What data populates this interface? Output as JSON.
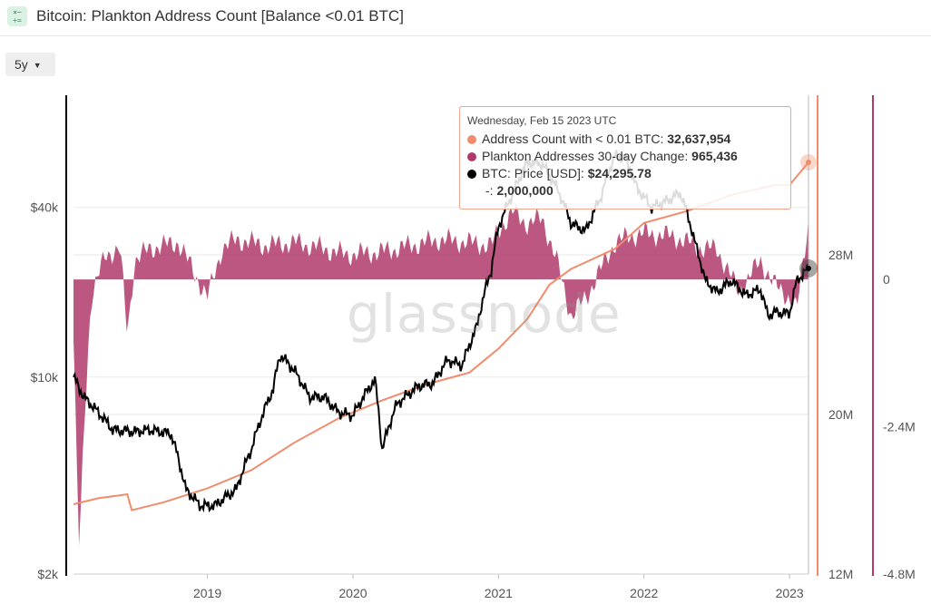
{
  "header": {
    "title": "Bitcoin: Plankton Address Count [Balance <0.01 BTC]",
    "icon": "calculator-icon"
  },
  "controls": {
    "range_label": "5y"
  },
  "watermark": "glassnode",
  "tooltip": {
    "date": "Wednesday, Feb 15 2023 UTC",
    "rows": [
      {
        "label": "Address Count with < 0.01 BTC: ",
        "value": "32,637,954",
        "color": "#f08c6c"
      },
      {
        "label": "Plankton Addresses 30-day Change: ",
        "value": "965,436",
        "color": "#b03a6b"
      },
      {
        "label": "BTC: Price [USD]: ",
        "value": "$24,295.78",
        "color": "#000000"
      },
      {
        "label": "-: ",
        "value": "2,000,000",
        "color": ""
      }
    ]
  },
  "chart_data": {
    "type": "line",
    "title": "Bitcoin: Plankton Address Count [Balance <0.01 BTC]",
    "x_ticks": [
      "2019",
      "2020",
      "2021",
      "2022",
      "2023"
    ],
    "x_range": [
      2018.08,
      2023.13
    ],
    "axes": {
      "price_log": {
        "ticks": [
          "$40k",
          "$10k",
          "$2k"
        ],
        "tick_values": [
          40000,
          10000,
          2000
        ],
        "range": [
          2000,
          100000
        ],
        "scale": "log"
      },
      "address_count": {
        "ticks": [
          "28M",
          "20M",
          "12M"
        ],
        "tick_values": [
          28000000,
          20000000,
          12000000
        ],
        "range": [
          12000000,
          36000000
        ]
      },
      "change_30d": {
        "ticks": [
          "0",
          "-2.4M",
          "-4.8M"
        ],
        "tick_values": [
          0,
          -2400000,
          -4800000
        ],
        "range": [
          -4800000,
          3000000
        ]
      }
    },
    "series": [
      {
        "name": "BTC: Price [USD]",
        "color": "#000000",
        "axis": "price_log",
        "x": [
          2018.08,
          2018.15,
          2018.25,
          2018.35,
          2018.5,
          2018.6,
          2018.75,
          2018.85,
          2018.95,
          2019.05,
          2019.2,
          2019.3,
          2019.45,
          2019.5,
          2019.6,
          2019.7,
          2019.8,
          2019.9,
          2020.0,
          2020.15,
          2020.2,
          2020.3,
          2020.45,
          2020.55,
          2020.65,
          2020.75,
          2020.85,
          2020.95,
          2021.0,
          2021.1,
          2021.2,
          2021.3,
          2021.4,
          2021.5,
          2021.6,
          2021.7,
          2021.8,
          2021.87,
          2021.95,
          2022.05,
          2022.15,
          2022.25,
          2022.35,
          2022.42,
          2022.5,
          2022.6,
          2022.7,
          2022.8,
          2022.85,
          2022.9,
          2023.0,
          2023.05,
          2023.13
        ],
        "values": [
          10000,
          8500,
          7500,
          6500,
          6400,
          6500,
          6300,
          4000,
          3500,
          3500,
          4000,
          5500,
          9000,
          12000,
          10500,
          8500,
          8500,
          7500,
          7300,
          9800,
          5500,
          8000,
          9300,
          9500,
          11500,
          11000,
          15000,
          24000,
          34000,
          45000,
          58000,
          57000,
          47000,
          35000,
          33000,
          43000,
          61000,
          60000,
          47000,
          40000,
          42000,
          45000,
          30000,
          22000,
          20000,
          22000,
          19500,
          20500,
          16500,
          17000,
          16800,
          22000,
          24300
        ]
      },
      {
        "name": "Address Count with < 0.01 BTC",
        "color": "#f08c6c",
        "axis": "address_count",
        "x": [
          2018.08,
          2018.25,
          2018.45,
          2018.48,
          2018.7,
          2019.0,
          2019.3,
          2019.6,
          2019.9,
          2020.2,
          2020.5,
          2020.8,
          2021.0,
          2021.2,
          2021.35,
          2021.5,
          2021.8,
          2022.0,
          2022.3,
          2022.6,
          2022.9,
          2023.0,
          2023.13
        ],
        "values": [
          15500000,
          15800000,
          16000000,
          15200000,
          15600000,
          16300000,
          17200000,
          18600000,
          19800000,
          20700000,
          21500000,
          22100000,
          23300000,
          24800000,
          26500000,
          27300000,
          28300000,
          29600000,
          30200000,
          31000000,
          31500000,
          31500000,
          32637954
        ]
      },
      {
        "name": "Plankton Addresses 30-day Change",
        "color": "#b03a6b",
        "axis": "change_30d",
        "x": [
          2018.08,
          2018.12,
          2018.15,
          2018.2,
          2018.3,
          2018.4,
          2018.45,
          2018.5,
          2018.6,
          2018.8,
          2019.0,
          2019.1,
          2019.2,
          2019.4,
          2019.6,
          2019.8,
          2019.95,
          2020.2,
          2020.4,
          2020.6,
          2020.8,
          2020.95,
          2021.0,
          2021.1,
          2021.2,
          2021.3,
          2021.4,
          2021.5,
          2021.6,
          2021.8,
          2021.9,
          2022.0,
          2022.2,
          2022.3,
          2022.4,
          2022.5,
          2022.65,
          2022.8,
          2022.9,
          2023.0,
          2023.05,
          2023.13
        ],
        "values": [
          -1000000,
          -4500000,
          -2500000,
          -300000,
          400000,
          500000,
          -900000,
          300000,
          500000,
          600000,
          -300000,
          500000,
          650000,
          550000,
          600000,
          500000,
          400000,
          450000,
          550000,
          650000,
          600000,
          550000,
          800000,
          1100000,
          900000,
          1000000,
          300000,
          -600000,
          -300000,
          600000,
          700000,
          750000,
          700000,
          600000,
          500000,
          500000,
          -200000,
          300000,
          -100000,
          -300000,
          -500000,
          965436
        ]
      }
    ],
    "reference_line": {
      "name": "-",
      "value": 2000000,
      "axis": "address_count"
    }
  }
}
